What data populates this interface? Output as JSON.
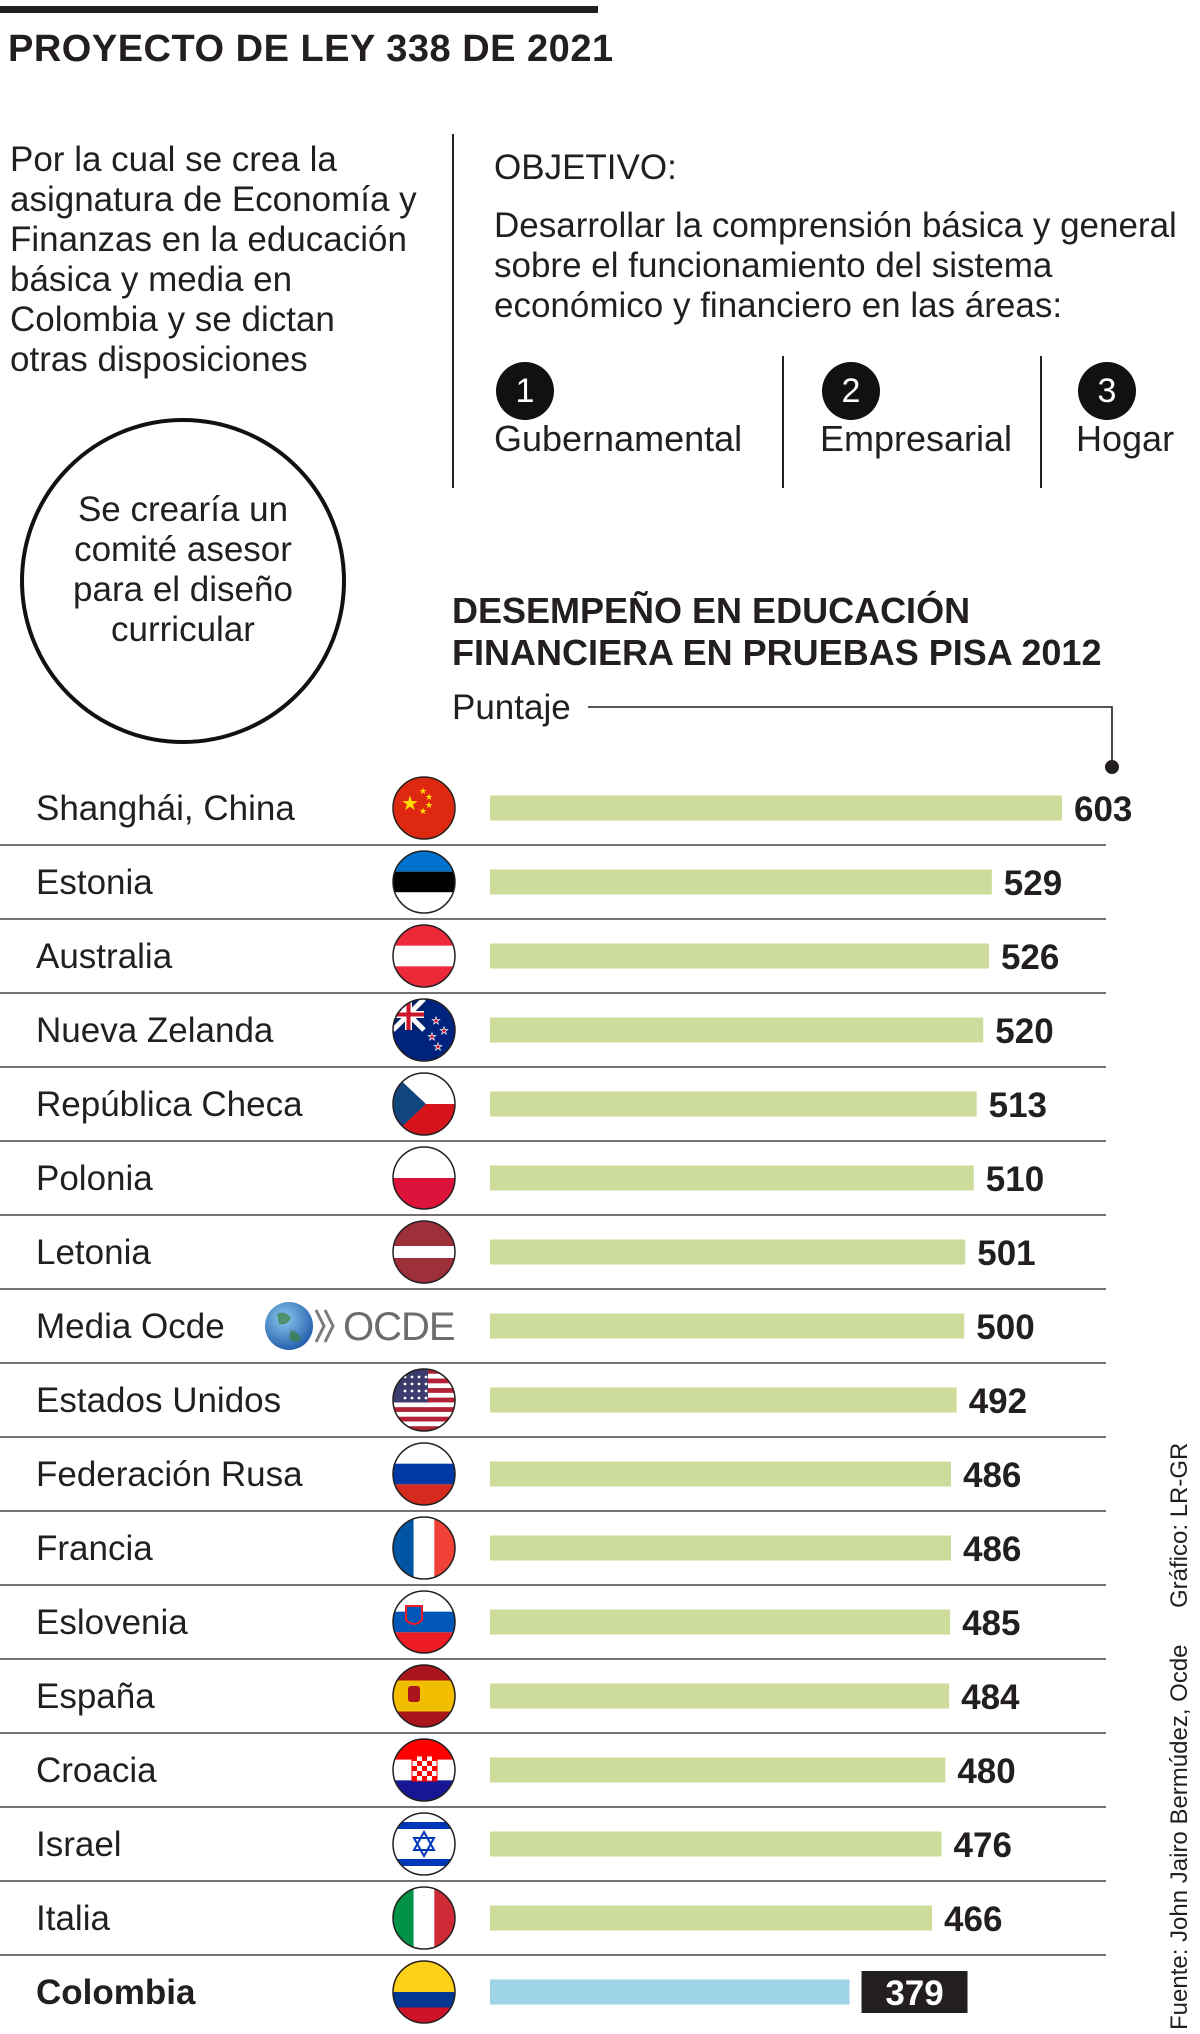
{
  "header": {
    "title": "PROYECTO DE LEY 338 DE 2021"
  },
  "description": "Por la cual se crea la\nasignatura de Economía y\nFinanzas en la educación\nbásica y media en\nColombia y se dictan\notras disposiciones",
  "objective": {
    "label": "OBJETIVO:",
    "text": "Desarrollar la comprensión básica y general\nsobre el funcionamiento del sistema\neconómico y financiero en las áreas:",
    "areas": [
      {
        "num": "1",
        "label": "Gubernamental"
      },
      {
        "num": "2",
        "label": "Empresarial"
      },
      {
        "num": "3",
        "label": "Hogar"
      }
    ]
  },
  "committee": "Se crearía un\ncomité asesor\npara el diseño\ncurricular",
  "credits": {
    "graphic": "Gráfico: LR-GR",
    "source": "Fuente: John Jairo Bermúdez, Ocde"
  },
  "colors": {
    "bar": "#cddc9a",
    "highlight_bar": "#9fd3e8",
    "text": "#231f20",
    "label_box": "#231f20"
  },
  "chart_data": {
    "type": "bar",
    "orientation": "horizontal",
    "title": "DESEMPEÑO EN EDUCACIÓN\nFINANCIERA EN PRUEBAS PISA 2012",
    "subtitle": "Puntaje",
    "xlim": [
      0,
      603
    ],
    "categories": [
      "Shanghái, China",
      "Estonia",
      "Australia",
      "Nueva Zelanda",
      "República Checa",
      "Polonia",
      "Letonia",
      "Media Ocde",
      "Estados Unidos",
      "Federación Rusa",
      "Francia",
      "Eslovenia",
      "España",
      "Croacia",
      "Israel",
      "Italia",
      "Colombia"
    ],
    "values": [
      603,
      529,
      526,
      520,
      513,
      510,
      501,
      500,
      492,
      486,
      486,
      485,
      484,
      480,
      476,
      466,
      379
    ],
    "flags": [
      "china-flag-icon",
      "estonia-flag-icon",
      "austria-flag-icon",
      "new-zealand-flag-icon",
      "czech-flag-icon",
      "poland-flag-icon",
      "latvia-flag-icon",
      "ocde-logo",
      "usa-flag-icon",
      "russia-flag-icon",
      "france-flag-icon",
      "slovenia-flag-icon",
      "spain-flag-icon",
      "croatia-flag-icon",
      "israel-flag-icon",
      "italy-flag-icon",
      "colombia-flag-icon"
    ],
    "highlight": "Colombia",
    "ocde_logo_text": "OCDE"
  }
}
